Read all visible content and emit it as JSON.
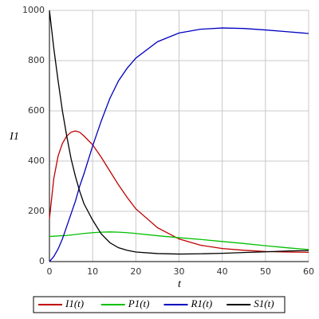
{
  "chart_data": {
    "type": "line",
    "x_label": "t",
    "y_label": "I1",
    "x": [
      0,
      1,
      2,
      3,
      4,
      5,
      6,
      7,
      8,
      10,
      12,
      14,
      16,
      18,
      20,
      25,
      30,
      35,
      40,
      45,
      50,
      55,
      60
    ],
    "series": [
      {
        "name": "I1(t)",
        "color": "#c00000",
        "values": [
          170,
          330,
          420,
          470,
          500,
          515,
          520,
          515,
          500,
          465,
          415,
          360,
          305,
          255,
          210,
          135,
          90,
          65,
          52,
          45,
          40,
          38,
          37
        ]
      },
      {
        "name": "P1(t)",
        "color": "#00c000",
        "values": [
          100,
          101,
          102,
          103,
          104,
          106,
          108,
          110,
          112,
          115,
          117,
          118,
          117,
          115,
          112,
          103,
          95,
          88,
          80,
          72,
          63,
          55,
          48
        ]
      },
      {
        "name": "R1(t)",
        "color": "#0000c0",
        "values": [
          0,
          20,
          50,
          90,
          140,
          190,
          240,
          300,
          350,
          460,
          560,
          650,
          720,
          770,
          810,
          875,
          910,
          925,
          930,
          928,
          922,
          915,
          908
        ]
      },
      {
        "name": "S1(t)",
        "color": "#000000",
        "values": [
          1000,
          850,
          720,
          600,
          500,
          410,
          340,
          280,
          230,
          165,
          110,
          75,
          55,
          45,
          38,
          32,
          30,
          31,
          33,
          36,
          39,
          42,
          44
        ]
      }
    ],
    "xlim": [
      0,
      60
    ],
    "ylim": [
      0,
      1000
    ],
    "xticks": [
      0,
      10,
      20,
      30,
      40,
      50,
      60
    ],
    "yticks": [
      0,
      200,
      400,
      600,
      800,
      1000
    ],
    "grid": true
  }
}
